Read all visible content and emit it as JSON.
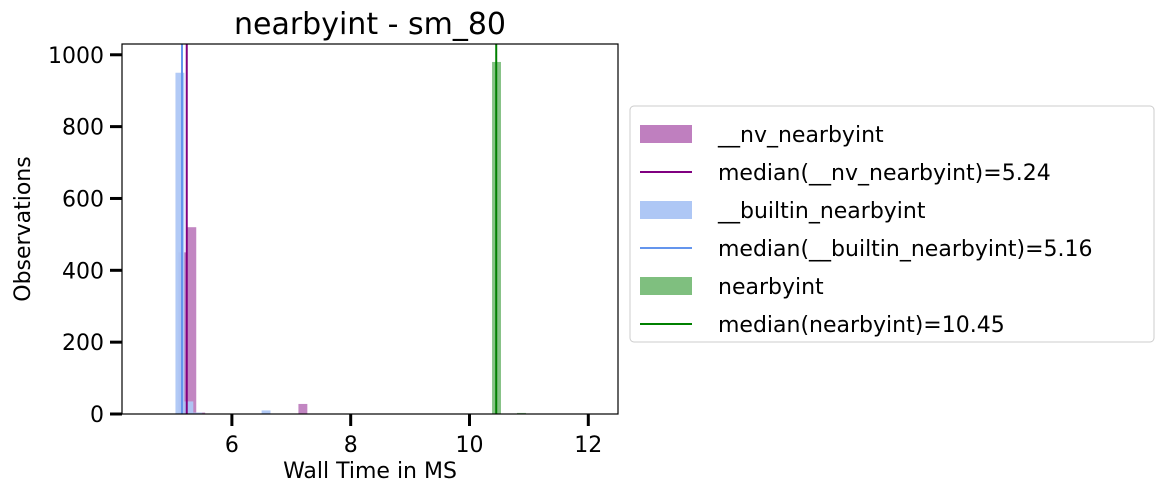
{
  "chart_data": {
    "type": "bar",
    "title": "nearbyint - sm_80",
    "xlabel": "Wall Time in MS",
    "ylabel": "Observations",
    "xlim": [
      4.15,
      12.5
    ],
    "ylim": [
      0,
      1030
    ],
    "xticks": [
      6,
      8,
      10,
      12
    ],
    "yticks": [
      0,
      200,
      400,
      600,
      800,
      1000
    ],
    "grid": false,
    "legend_placement": "right-outside",
    "series": [
      {
        "name": "__nv_nearbyint",
        "color": "#bf7fbf",
        "bars": [
          {
            "x0": 5.1,
            "x1": 5.25,
            "y": 450
          },
          {
            "x0": 5.25,
            "x1": 5.4,
            "y": 520
          },
          {
            "x0": 5.4,
            "x1": 5.55,
            "y": 4
          },
          {
            "x0": 7.12,
            "x1": 7.27,
            "y": 28
          }
        ]
      },
      {
        "name": "__builtin_nearbyint",
        "color": "#aec7f5",
        "bars": [
          {
            "x0": 5.05,
            "x1": 5.2,
            "y": 950
          },
          {
            "x0": 5.2,
            "x1": 5.35,
            "y": 35
          },
          {
            "x0": 5.35,
            "x1": 5.5,
            "y": 4
          },
          {
            "x0": 6.5,
            "x1": 6.65,
            "y": 10
          }
        ]
      },
      {
        "name": "nearbyint",
        "color": "#7fbf7f",
        "bars": [
          {
            "x0": 10.38,
            "x1": 10.53,
            "y": 980
          },
          {
            "x0": 10.8,
            "x1": 10.95,
            "y": 3
          }
        ]
      }
    ],
    "medians": [
      {
        "name": "median(__nv_nearbyint)=5.24",
        "value": 5.24,
        "color": "#800080"
      },
      {
        "name": "median(__builtin_nearbyint)=5.16",
        "value": 5.16,
        "color": "#6495ed"
      },
      {
        "name": "median(nearbyint)=10.45",
        "value": 10.45,
        "color": "#008000"
      }
    ],
    "legend": [
      {
        "label": "__nv_nearbyint",
        "kind": "patch",
        "color": "#bf7fbf"
      },
      {
        "label": "median(__nv_nearbyint)=5.24",
        "kind": "line",
        "color": "#800080"
      },
      {
        "label": "__builtin_nearbyint",
        "kind": "patch",
        "color": "#aec7f5"
      },
      {
        "label": "median(__builtin_nearbyint)=5.16",
        "kind": "line",
        "color": "#6495ed"
      },
      {
        "label": "nearbyint",
        "kind": "patch",
        "color": "#7fbf7f"
      },
      {
        "label": "median(nearbyint)=10.45",
        "kind": "line",
        "color": "#008000"
      }
    ]
  }
}
